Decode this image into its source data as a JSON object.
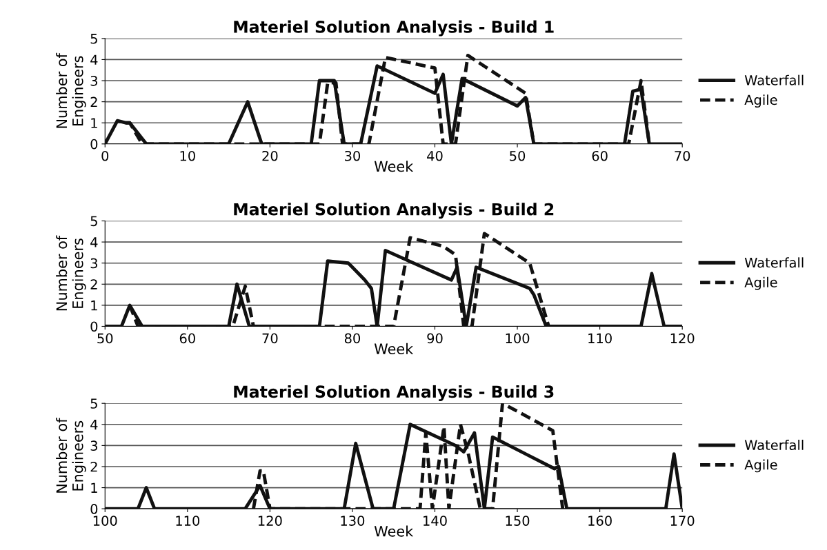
{
  "chart_data": [
    {
      "type": "line",
      "title": "Materiel Solution Analysis - Build 1",
      "xlabel": "Week",
      "ylabel": "Number of\nEngineers",
      "xlim": [
        0,
        70
      ],
      "xticks": [
        0,
        10,
        20,
        30,
        40,
        50,
        60,
        70
      ],
      "ylim": [
        0,
        5
      ],
      "yticks": [
        0,
        1,
        2,
        3,
        4,
        5
      ],
      "grid": "y",
      "legend": "right",
      "marker": "none",
      "series": [
        {
          "name": "Waterfall",
          "color": "#111111",
          "line_style": "solid",
          "x": [
            0,
            1.5,
            2.5,
            3,
            5,
            15,
            17.3,
            19,
            25,
            26,
            27.8,
            29,
            31,
            33,
            40,
            41,
            42,
            43.3,
            50,
            51,
            52,
            63,
            64,
            65,
            66,
            70
          ],
          "values": [
            0,
            1.1,
            1.0,
            1.0,
            0,
            0,
            2.0,
            0,
            0,
            3.0,
            3.0,
            0,
            0,
            3.7,
            2.4,
            3.3,
            0,
            3.1,
            1.8,
            2.2,
            0,
            0,
            2.5,
            2.6,
            0,
            0
          ]
        },
        {
          "name": "Agile",
          "color": "#111111",
          "line_style": "dashed",
          "x": [
            2.5,
            3,
            4.5,
            26,
            27,
            28,
            28.8,
            32,
            34,
            40,
            41,
            42.5,
            44,
            51,
            52,
            63.5,
            65,
            66
          ],
          "values": [
            1.0,
            1.0,
            0,
            0,
            2.9,
            2.9,
            0,
            0,
            4.1,
            3.6,
            0,
            0,
            4.2,
            2.4,
            0,
            0,
            3.0,
            0
          ]
        }
      ]
    },
    {
      "type": "line",
      "title": "Materiel Solution Analysis - Build 2",
      "xlabel": "Week",
      "ylabel": "Number of\nEngineers",
      "xlim": [
        50,
        120
      ],
      "xticks": [
        50,
        60,
        70,
        80,
        90,
        100,
        110,
        120
      ],
      "ylim": [
        0,
        5
      ],
      "yticks": [
        0,
        1,
        2,
        3,
        4,
        5
      ],
      "grid": "y",
      "legend": "right",
      "marker": "none",
      "series": [
        {
          "name": "Waterfall",
          "color": "#111111",
          "line_style": "solid",
          "x": [
            50,
            52,
            53,
            54.5,
            65,
            66,
            67.5,
            76,
            77,
            79.5,
            81.5,
            82.3,
            83,
            84,
            92,
            92.7,
            93.8,
            95,
            101.5,
            102,
            103.5,
            115,
            116.3,
            117.8,
            120
          ],
          "values": [
            0,
            0,
            1.0,
            0,
            0,
            2.0,
            0,
            0,
            3.1,
            3.0,
            2.2,
            1.8,
            0,
            3.6,
            2.2,
            2.8,
            0,
            2.8,
            1.8,
            1.5,
            0,
            0,
            2.5,
            0,
            0
          ]
        },
        {
          "name": "Agile",
          "color": "#111111",
          "line_style": "dashed",
          "x": [
            53,
            54,
            65.5,
            67,
            68,
            85,
            87,
            91,
            92.5,
            93.5,
            94.5,
            96,
            101.5,
            103.8
          ],
          "values": [
            1.0,
            0,
            0,
            1.9,
            0,
            0,
            4.2,
            3.8,
            3.4,
            0,
            0,
            4.4,
            3.0,
            0
          ]
        }
      ]
    },
    {
      "type": "line",
      "title": "Materiel Solution Analysis - Build 3",
      "xlabel": "Week",
      "ylabel": "Number of\nEngineers",
      "xlim": [
        100,
        170
      ],
      "xticks": [
        100,
        110,
        120,
        130,
        140,
        150,
        160,
        170
      ],
      "ylim": [
        0,
        5
      ],
      "yticks": [
        0,
        1,
        2,
        3,
        4,
        5
      ],
      "grid": "y",
      "legend": "right",
      "marker": "none",
      "series": [
        {
          "name": "Waterfall",
          "color": "#111111",
          "line_style": "solid",
          "x": [
            100,
            104,
            105,
            106,
            117,
            118.8,
            120,
            129,
            130.4,
            132.5,
            135,
            137,
            142.5,
            143.5,
            144.8,
            146,
            147,
            154.5,
            155,
            156,
            168,
            169,
            170
          ],
          "values": [
            0,
            0,
            1.0,
            0,
            0,
            1.1,
            0,
            0,
            3.1,
            0,
            0,
            4.0,
            3.0,
            2.7,
            3.6,
            0,
            3.4,
            1.9,
            2.0,
            0,
            0,
            2.6,
            0
          ]
        },
        {
          "name": "Agile",
          "color": "#111111",
          "line_style": "dashed",
          "x": [
            118,
            118.8,
            119.2,
            120,
            138.2,
            138.9,
            139.7,
            141.1,
            141.7,
            143.1,
            144,
            145.5,
            147,
            148.2,
            152,
            154.3,
            155.5
          ],
          "values": [
            0,
            1.8,
            1.8,
            0,
            0,
            3.6,
            0,
            3.9,
            0,
            4.0,
            2.7,
            0,
            0,
            5.0,
            4.2,
            3.7,
            0
          ]
        }
      ]
    }
  ]
}
